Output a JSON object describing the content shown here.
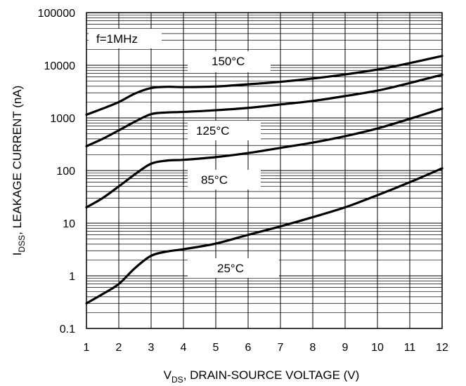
{
  "chart_data": {
    "type": "line",
    "title": "",
    "xlabel": {
      "main": "V",
      "sub": "DS",
      "rest": ", DRAIN-SOURCE VOLTAGE (V)"
    },
    "ylabel": {
      "main": "I",
      "sub": "DSS",
      "rest": ", LEAKAGE CURRENT (nA)"
    },
    "xlim": [
      1,
      12
    ],
    "ylim": [
      0.1,
      100000
    ],
    "yscale": "log",
    "grid": true,
    "x_ticks": [
      "1",
      "2",
      "3",
      "4",
      "5",
      "6",
      "7",
      "8",
      "9",
      "10",
      "11",
      "12"
    ],
    "y_ticks": [
      "0.1",
      "1",
      "10",
      "100",
      "1000",
      "10000",
      "100000"
    ],
    "annotation": "f=1MHz",
    "series": [
      {
        "name": "150°C",
        "x": [
          1,
          1.5,
          2,
          2.5,
          3,
          3.5,
          4,
          5,
          6,
          7,
          8,
          9,
          10,
          11,
          12
        ],
        "y": [
          1150,
          1500,
          2000,
          2900,
          3700,
          3900,
          3850,
          3950,
          4350,
          4850,
          5600,
          6700,
          8300,
          11000,
          15000
        ]
      },
      {
        "name": "125°C",
        "x": [
          1,
          1.5,
          2,
          2.5,
          3,
          3.5,
          4,
          5,
          6,
          7,
          8,
          9,
          10,
          11,
          12
        ],
        "y": [
          290,
          400,
          580,
          850,
          1180,
          1270,
          1300,
          1400,
          1550,
          1800,
          2100,
          2600,
          3300,
          4600,
          6600
        ]
      },
      {
        "name": "85°C",
        "x": [
          1,
          1.5,
          2,
          2.5,
          3,
          3.5,
          4,
          5,
          6,
          7,
          8,
          9,
          10,
          11,
          12
        ],
        "y": [
          20,
          30,
          50,
          85,
          135,
          155,
          160,
          180,
          215,
          270,
          340,
          450,
          630,
          960,
          1500
        ]
      },
      {
        "name": "25°C",
        "x": [
          1,
          1.5,
          2,
          2.5,
          3,
          3.5,
          4,
          5,
          6,
          7,
          8,
          9,
          10,
          11,
          12
        ],
        "y": [
          0.3,
          0.45,
          0.7,
          1.4,
          2.4,
          2.9,
          3.2,
          4.1,
          6,
          8.7,
          13,
          20,
          34,
          60,
          110
        ]
      }
    ]
  }
}
